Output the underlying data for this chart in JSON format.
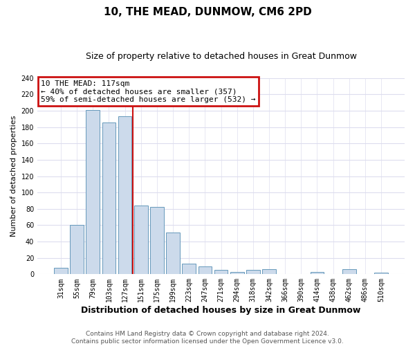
{
  "title": "10, THE MEAD, DUNMOW, CM6 2PD",
  "subtitle": "Size of property relative to detached houses in Great Dunmow",
  "xlabel": "Distribution of detached houses by size in Great Dunmow",
  "ylabel": "Number of detached properties",
  "bar_labels": [
    "31sqm",
    "55sqm",
    "79sqm",
    "103sqm",
    "127sqm",
    "151sqm",
    "175sqm",
    "199sqm",
    "223sqm",
    "247sqm",
    "271sqm",
    "294sqm",
    "318sqm",
    "342sqm",
    "366sqm",
    "390sqm",
    "414sqm",
    "438sqm",
    "462sqm",
    "486sqm",
    "510sqm"
  ],
  "bar_values": [
    8,
    60,
    201,
    186,
    193,
    84,
    82,
    51,
    13,
    10,
    5,
    3,
    5,
    6,
    0,
    0,
    3,
    0,
    6,
    0,
    2
  ],
  "bar_color": "#ccdaeb",
  "bar_edge_color": "#6699bb",
  "highlight_bar_index": 4,
  "vline_x": 4.5,
  "highlight_box_text": "10 THE MEAD: 117sqm\n← 40% of detached houses are smaller (357)\n59% of semi-detached houses are larger (532) →",
  "highlight_box_color": "#cc1111",
  "ylim": [
    0,
    240
  ],
  "yticks": [
    0,
    20,
    40,
    60,
    80,
    100,
    120,
    140,
    160,
    180,
    200,
    220,
    240
  ],
  "footer_line1": "Contains HM Land Registry data © Crown copyright and database right 2024.",
  "footer_line2": "Contains public sector information licensed under the Open Government Licence v3.0.",
  "background_color": "#ffffff",
  "grid_color": "#ddddee",
  "title_fontsize": 11,
  "subtitle_fontsize": 9,
  "xlabel_fontsize": 9,
  "ylabel_fontsize": 8,
  "tick_fontsize": 7,
  "annotation_fontsize": 8,
  "footer_fontsize": 6.5
}
